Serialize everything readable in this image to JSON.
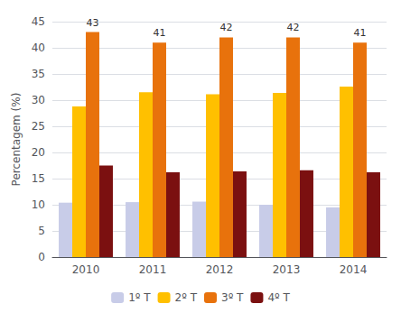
{
  "chart_data": {
    "type": "bar",
    "y_label": "Percentagem (%)",
    "categories": [
      "2010",
      "2011",
      "2012",
      "2013",
      "2014"
    ],
    "series": [
      {
        "name": "1º T",
        "color": "#c8cce8",
        "values": [
          10.4,
          10.5,
          10.6,
          10.0,
          9.5
        ]
      },
      {
        "name": "2º T",
        "color": "#ffc000",
        "values": [
          28.8,
          31.5,
          31.1,
          31.4,
          32.6
        ]
      },
      {
        "name": "3º T",
        "color": "#e8720c",
        "values": [
          43.0,
          41.0,
          42.0,
          42.0,
          41.0
        ],
        "data_labels": true
      },
      {
        "name": "4º T",
        "color": "#7b1010",
        "values": [
          17.5,
          16.2,
          16.4,
          16.6,
          16.2
        ]
      }
    ],
    "ylim": [
      0,
      45
    ],
    "yticks": [
      0,
      5,
      10,
      15,
      20,
      25,
      30,
      35,
      40,
      45
    ],
    "grid": true,
    "legend": "bottom"
  }
}
